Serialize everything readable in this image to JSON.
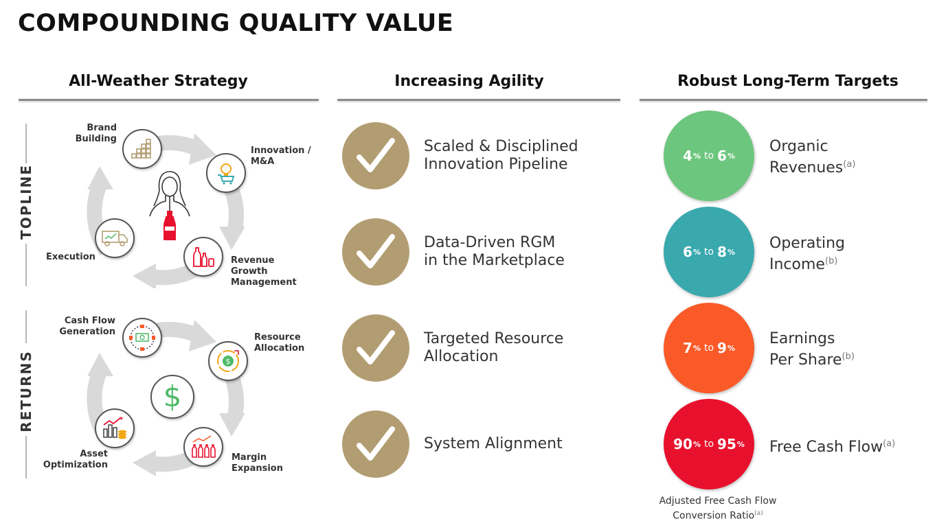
{
  "title": "COMPOUNDING QUALITY VALUE",
  "columns": {
    "strategy": "All-Weather Strategy",
    "agility": "Increasing Agility",
    "targets": "Robust Long-Term Targets"
  },
  "topline": {
    "label": "TOPLINE",
    "brand": "Brand\nBuilding",
    "innovation": "Innovation /\nM&A",
    "execution": "Execution",
    "rgm": "Revenue\nGrowth\nManagement"
  },
  "returns": {
    "label": "RETURNS",
    "cashflow": "Cash Flow\nGeneration",
    "resource": "Resource\nAllocation",
    "asset": "Asset\nOptimization",
    "margin": "Margin\nExpansion"
  },
  "agility_items": [
    {
      "line1": "Scaled & Disciplined",
      "line2": "Innovation Pipeline"
    },
    {
      "line1": "Data-Driven RGM",
      "line2": "in the Marketplace"
    },
    {
      "line1": "Targeted Resource",
      "line2": "Allocation"
    },
    {
      "line1": "System Alignment",
      "line2": ""
    }
  ],
  "targets": [
    {
      "low": "4",
      "high": "6",
      "pct": "%",
      "to": "to",
      "color": "#6dc67e",
      "line1": "Organic",
      "line2": "Revenues",
      "note": "(a)"
    },
    {
      "low": "6",
      "high": "8",
      "pct": "%",
      "to": "to",
      "color": "#3aa9ae",
      "line1": "Operating",
      "line2": "Income",
      "note": "(b)"
    },
    {
      "low": "7",
      "high": "9",
      "pct": "%",
      "to": "to",
      "color": "#fa5a28",
      "line1": "Earnings",
      "line2": "Per Share",
      "note": "(b)"
    },
    {
      "low": "90",
      "high": "95",
      "pct": "%",
      "to": "to",
      "color": "#e8112d",
      "line1": "Free Cash Flow",
      "line2": "",
      "note": "(a)"
    }
  ],
  "footnote": {
    "line1": "Adjusted Free Cash Flow",
    "line2": "Conversion Ratio",
    "note": "(a)"
  },
  "colors": {
    "check": "#b29d72",
    "arrow": "#d9d9d9",
    "dollar": "#4fb968",
    "coke_red": "#e8112d"
  }
}
